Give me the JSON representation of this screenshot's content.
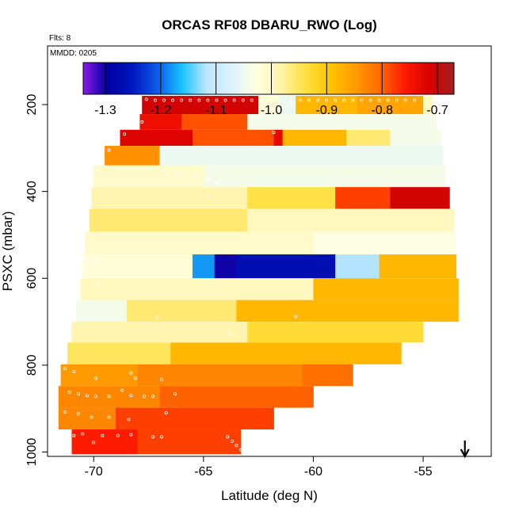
{
  "chart_data": {
    "type": "heatmap",
    "title": "ORCAS RF08 DBARU_RWO (Log)",
    "flights_note": "Flts: 8",
    "date_note": "MMDD: 0205",
    "xlabel": "Latitude (deg N)",
    "ylabel": "PSXC (mbar)",
    "xlim": [
      -72.1,
      -51.9
    ],
    "ylim": [
      1010,
      65
    ],
    "x_ticks": [
      -70,
      -65,
      -60,
      -55
    ],
    "x_tick_labels": [
      "-70",
      "-65",
      "-60",
      "-55"
    ],
    "y_ticks": [
      200,
      400,
      600,
      800,
      1000
    ],
    "y_tick_labels": [
      "200",
      "400",
      "600",
      "800",
      "1000"
    ],
    "colorbar": {
      "range": [
        -1.34,
        -0.67
      ],
      "ticks": [
        -1.3,
        -1.2,
        -1.1,
        -1.0,
        -0.9,
        -0.8,
        -0.7
      ],
      "tick_labels": [
        "-1.3",
        "-1.2",
        "-1.1",
        "-1.0",
        "-0.9",
        "-0.8",
        "-0.7"
      ],
      "colors": [
        "#8b1ae8",
        "#0000a0",
        "#0018c0",
        "#0a5ce8",
        "#19c3ff",
        "#bfe6ff",
        "#dcf2ff",
        "#ffffe0",
        "#fff3a8",
        "#ffe040",
        "#ffc300",
        "#ff9a00",
        "#ff6a00",
        "#ff1a00",
        "#d80000",
        "#a02020"
      ]
    },
    "arrow_marker": {
      "latitude": -53.1,
      "direction": "down"
    },
    "bands": [
      {
        "p_top": 180,
        "p_bottom": 222,
        "segments": [
          {
            "lat_start": -67.8,
            "lat_end": -62.5,
            "value": -0.71
          },
          {
            "lat_start": -62.5,
            "lat_end": -61.6,
            "value": -1.02
          },
          {
            "lat_start": -61.6,
            "lat_end": -60.8,
            "value": -1.05
          },
          {
            "lat_start": -60.8,
            "lat_end": -58.0,
            "value": -0.88
          },
          {
            "lat_start": -58.0,
            "lat_end": -55.0,
            "value": -0.86
          },
          {
            "lat_start": -55.0,
            "lat_end": -54.6,
            "value": -1.0
          }
        ]
      },
      {
        "p_top": 222,
        "p_bottom": 258,
        "segments": [
          {
            "lat_start": -67.9,
            "lat_end": -66.0,
            "value": -0.74
          },
          {
            "lat_start": -66.0,
            "lat_end": -63.0,
            "value": -0.79
          },
          {
            "lat_start": -63.0,
            "lat_end": -54.4,
            "value": -1.04
          }
        ]
      },
      {
        "p_top": 258,
        "p_bottom": 295,
        "segments": [
          {
            "lat_start": -68.8,
            "lat_end": -65.5,
            "value": -0.72
          },
          {
            "lat_start": -65.5,
            "lat_end": -61.8,
            "value": -0.79
          },
          {
            "lat_start": -61.8,
            "lat_end": -61.4,
            "value": -0.73
          },
          {
            "lat_start": -61.4,
            "lat_end": -58.5,
            "value": -0.88
          },
          {
            "lat_start": -58.5,
            "lat_end": -56.5,
            "value": -0.96
          },
          {
            "lat_start": -56.5,
            "lat_end": -54.2,
            "value": -1.04
          }
        ]
      },
      {
        "p_top": 295,
        "p_bottom": 340,
        "segments": [
          {
            "lat_start": -69.5,
            "lat_end": -67.0,
            "value": -0.84
          },
          {
            "lat_start": -67.0,
            "lat_end": -54.1,
            "value": -1.05
          }
        ]
      },
      {
        "p_top": 340,
        "p_bottom": 390,
        "segments": [
          {
            "lat_start": -70.0,
            "lat_end": -65.0,
            "value": -1.01
          },
          {
            "lat_start": -65.0,
            "lat_end": -54.0,
            "value": -1.04
          }
        ]
      },
      {
        "p_top": 390,
        "p_bottom": 440,
        "segments": [
          {
            "lat_start": -70.1,
            "lat_end": -63.0,
            "value": -0.99
          },
          {
            "lat_start": -63.0,
            "lat_end": -59.0,
            "value": -0.94
          },
          {
            "lat_start": -59.0,
            "lat_end": -56.5,
            "value": -0.78
          },
          {
            "lat_start": -56.5,
            "lat_end": -53.8,
            "value": -0.71
          }
        ]
      },
      {
        "p_top": 440,
        "p_bottom": 493,
        "segments": [
          {
            "lat_start": -70.2,
            "lat_end": -63.0,
            "value": -0.96
          },
          {
            "lat_start": -63.0,
            "lat_end": -53.6,
            "value": -1.0
          }
        ]
      },
      {
        "p_top": 493,
        "p_bottom": 545,
        "segments": [
          {
            "lat_start": -70.4,
            "lat_end": -60.0,
            "value": -1.01
          },
          {
            "lat_start": -60.0,
            "lat_end": -53.5,
            "value": -1.03
          }
        ]
      },
      {
        "p_top": 545,
        "p_bottom": 600,
        "segments": [
          {
            "lat_start": -70.5,
            "lat_end": -65.5,
            "value": -1.02
          },
          {
            "lat_start": -65.5,
            "lat_end": -64.5,
            "value": -1.18
          },
          {
            "lat_start": -64.5,
            "lat_end": -63.5,
            "value": -1.3
          },
          {
            "lat_start": -63.5,
            "lat_end": -59.0,
            "value": -1.27
          },
          {
            "lat_start": -59.0,
            "lat_end": -57.0,
            "value": -1.12
          },
          {
            "lat_start": -57.0,
            "lat_end": -53.5,
            "value": -0.88
          }
        ]
      },
      {
        "p_top": 600,
        "p_bottom": 650,
        "segments": [
          {
            "lat_start": -70.6,
            "lat_end": -60.0,
            "value": -1.0
          },
          {
            "lat_start": -60.0,
            "lat_end": -53.4,
            "value": -0.88
          }
        ]
      },
      {
        "p_top": 650,
        "p_bottom": 700,
        "segments": [
          {
            "lat_start": -70.8,
            "lat_end": -68.5,
            "value": -1.04
          },
          {
            "lat_start": -68.5,
            "lat_end": -63.5,
            "value": -0.96
          },
          {
            "lat_start": -63.5,
            "lat_end": -53.4,
            "value": -0.88
          }
        ]
      },
      {
        "p_top": 700,
        "p_bottom": 748,
        "segments": [
          {
            "lat_start": -71.0,
            "lat_end": -63.0,
            "value": -0.99
          },
          {
            "lat_start": -63.0,
            "lat_end": -55.0,
            "value": -0.93
          }
        ]
      },
      {
        "p_top": 748,
        "p_bottom": 798,
        "segments": [
          {
            "lat_start": -71.2,
            "lat_end": -66.5,
            "value": -0.95
          },
          {
            "lat_start": -66.5,
            "lat_end": -56.0,
            "value": -0.88
          }
        ]
      },
      {
        "p_top": 798,
        "p_bottom": 848,
        "segments": [
          {
            "lat_start": -71.5,
            "lat_end": -68.0,
            "value": -0.85
          },
          {
            "lat_start": -68.0,
            "lat_end": -60.5,
            "value": -0.83
          },
          {
            "lat_start": -60.5,
            "lat_end": -58.2,
            "value": -0.81
          }
        ]
      },
      {
        "p_top": 848,
        "p_bottom": 898,
        "segments": [
          {
            "lat_start": -71.6,
            "lat_end": -67.0,
            "value": -0.83
          },
          {
            "lat_start": -67.0,
            "lat_end": -60.0,
            "value": -0.8
          }
        ]
      },
      {
        "p_top": 898,
        "p_bottom": 948,
        "segments": [
          {
            "lat_start": -71.6,
            "lat_end": -69.0,
            "value": -0.83
          },
          {
            "lat_start": -69.0,
            "lat_end": -61.8,
            "value": -0.78
          }
        ]
      },
      {
        "p_top": 948,
        "p_bottom": 1005,
        "segments": [
          {
            "lat_start": -71.0,
            "lat_end": -68.0,
            "value": -0.76
          },
          {
            "lat_start": -68.0,
            "lat_end": -63.3,
            "value": -0.78
          }
        ]
      }
    ],
    "sample_points": [
      {
        "lat": -67.6,
        "p": 188
      },
      {
        "lat": -67.2,
        "p": 190
      },
      {
        "lat": -66.8,
        "p": 190
      },
      {
        "lat": -66.4,
        "p": 190
      },
      {
        "lat": -66.0,
        "p": 190
      },
      {
        "lat": -65.6,
        "p": 190
      },
      {
        "lat": -65.2,
        "p": 190
      },
      {
        "lat": -64.8,
        "p": 190
      },
      {
        "lat": -64.4,
        "p": 190
      },
      {
        "lat": -64.0,
        "p": 190
      },
      {
        "lat": -63.6,
        "p": 190
      },
      {
        "lat": -63.2,
        "p": 190
      },
      {
        "lat": -62.8,
        "p": 190
      },
      {
        "lat": -61.0,
        "p": 195
      },
      {
        "lat": -60.6,
        "p": 190
      },
      {
        "lat": -60.2,
        "p": 190
      },
      {
        "lat": -59.8,
        "p": 190
      },
      {
        "lat": -59.4,
        "p": 190
      },
      {
        "lat": -59.0,
        "p": 190
      },
      {
        "lat": -58.6,
        "p": 190
      },
      {
        "lat": -58.2,
        "p": 190
      },
      {
        "lat": -57.8,
        "p": 190
      },
      {
        "lat": -57.4,
        "p": 190
      },
      {
        "lat": -57.0,
        "p": 190
      },
      {
        "lat": -56.6,
        "p": 190
      },
      {
        "lat": -56.2,
        "p": 190
      },
      {
        "lat": -55.8,
        "p": 190
      },
      {
        "lat": -55.4,
        "p": 190
      },
      {
        "lat": -67.8,
        "p": 240
      },
      {
        "lat": -61.8,
        "p": 264
      },
      {
        "lat": -68.6,
        "p": 268
      },
      {
        "lat": -69.3,
        "p": 305
      },
      {
        "lat": -66.2,
        "p": 360
      },
      {
        "lat": -65.4,
        "p": 363
      },
      {
        "lat": -64.8,
        "p": 372
      },
      {
        "lat": -64.4,
        "p": 380
      },
      {
        "lat": -64.8,
        "p": 410
      },
      {
        "lat": -70.4,
        "p": 470
      },
      {
        "lat": -70.6,
        "p": 515
      },
      {
        "lat": -64.8,
        "p": 523
      },
      {
        "lat": -70.7,
        "p": 552
      },
      {
        "lat": -70.5,
        "p": 555
      },
      {
        "lat": -70.3,
        "p": 555
      },
      {
        "lat": -70.1,
        "p": 557
      },
      {
        "lat": -69.8,
        "p": 612
      },
      {
        "lat": -70.8,
        "p": 648
      },
      {
        "lat": -67.1,
        "p": 690
      },
      {
        "lat": -60.8,
        "p": 688
      },
      {
        "lat": -63.8,
        "p": 728
      },
      {
        "lat": -71.3,
        "p": 808
      },
      {
        "lat": -70.9,
        "p": 815
      },
      {
        "lat": -69.9,
        "p": 830
      },
      {
        "lat": -68.3,
        "p": 818
      },
      {
        "lat": -68.1,
        "p": 830
      },
      {
        "lat": -66.9,
        "p": 833
      },
      {
        "lat": -71.1,
        "p": 862
      },
      {
        "lat": -70.7,
        "p": 866
      },
      {
        "lat": -70.3,
        "p": 870
      },
      {
        "lat": -69.9,
        "p": 872
      },
      {
        "lat": -69.3,
        "p": 872
      },
      {
        "lat": -68.7,
        "p": 858
      },
      {
        "lat": -68.3,
        "p": 870
      },
      {
        "lat": -67.7,
        "p": 872
      },
      {
        "lat": -67.3,
        "p": 872
      },
      {
        "lat": -66.3,
        "p": 866
      },
      {
        "lat": -71.3,
        "p": 908
      },
      {
        "lat": -70.7,
        "p": 912
      },
      {
        "lat": -70.1,
        "p": 920
      },
      {
        "lat": -69.3,
        "p": 920
      },
      {
        "lat": -68.4,
        "p": 925
      },
      {
        "lat": -66.7,
        "p": 910
      },
      {
        "lat": -71.3,
        "p": 955
      },
      {
        "lat": -70.9,
        "p": 962
      },
      {
        "lat": -70.5,
        "p": 958
      },
      {
        "lat": -69.6,
        "p": 962
      },
      {
        "lat": -68.9,
        "p": 962
      },
      {
        "lat": -68.3,
        "p": 960
      },
      {
        "lat": -67.3,
        "p": 965
      },
      {
        "lat": -66.9,
        "p": 965
      },
      {
        "lat": -63.9,
        "p": 965
      },
      {
        "lat": -63.7,
        "p": 975
      },
      {
        "lat": -63.5,
        "p": 985
      },
      {
        "lat": -63.3,
        "p": 995
      },
      {
        "lat": -70.0,
        "p": 978
      }
    ]
  }
}
